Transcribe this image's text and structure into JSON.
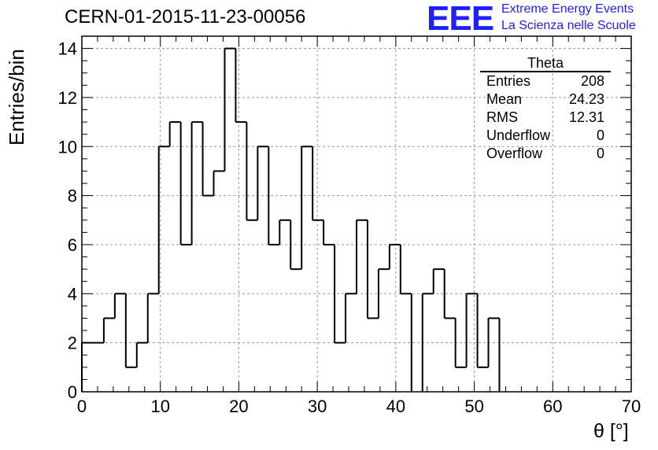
{
  "title": "CERN-01-2015-11-23-00056",
  "logo": {
    "mark": "EEE",
    "line1": "Extreme Energy Events",
    "line2": "La Scienza nelle Scuole",
    "color": "#1f1fff"
  },
  "stats": {
    "title": "Theta",
    "rows": [
      {
        "label": "Entries",
        "value": "208"
      },
      {
        "label": "Mean",
        "value": "24.23"
      },
      {
        "label": "RMS",
        "value": "12.31"
      },
      {
        "label": "Underflow",
        "value": "0"
      },
      {
        "label": "Overflow",
        "value": "0"
      }
    ]
  },
  "chart_data": {
    "type": "bar",
    "style": "step-histogram",
    "title": "CERN-01-2015-11-23-00056",
    "xlabel": "θ [°]",
    "ylabel": "Entries/bin",
    "xlim": [
      0,
      70
    ],
    "ylim": [
      0,
      14.5
    ],
    "bin_width": 1.4,
    "xticks": [
      0,
      10,
      20,
      30,
      40,
      50,
      60,
      70
    ],
    "yticks": [
      0,
      2,
      4,
      6,
      8,
      10,
      12,
      14
    ],
    "grid": true,
    "line_color": "#000000",
    "values": [
      2,
      2,
      3,
      4,
      1,
      2,
      4,
      10,
      11,
      6,
      11,
      8,
      9,
      14,
      11,
      7,
      10,
      6,
      7,
      5,
      10,
      7,
      6,
      2,
      4,
      7,
      3,
      5,
      6,
      4,
      0,
      4,
      5,
      3,
      1,
      4,
      1,
      3,
      0,
      0,
      0,
      0,
      0,
      0,
      0,
      0,
      0,
      0,
      0,
      0
    ]
  }
}
